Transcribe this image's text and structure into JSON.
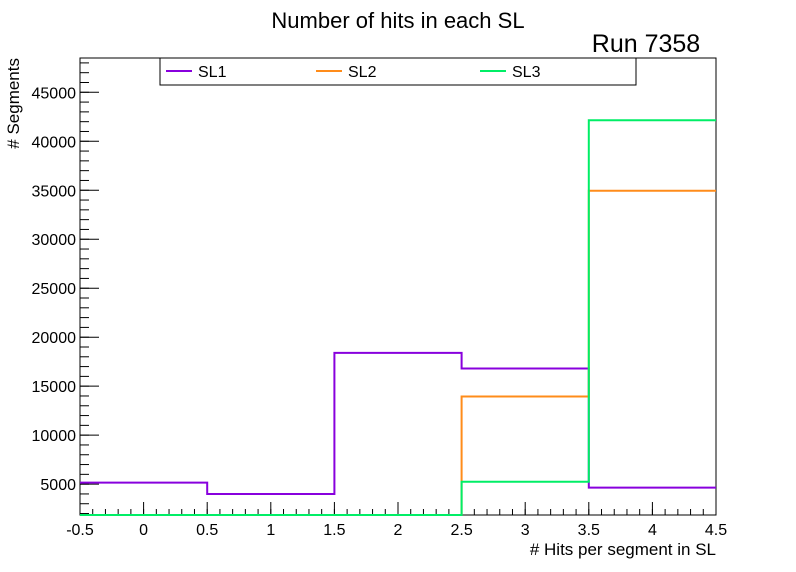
{
  "chart_data": {
    "type": "histogram",
    "title": "Number of hits in each SL",
    "run_label": "Run 7358",
    "xlabel": "# Hits per segment in SL",
    "ylabel": "# Segments",
    "xlim": [
      -0.5,
      4.5
    ],
    "ylim": [
      1850,
      48500
    ],
    "bin_edges": [
      -0.5,
      0.5,
      1.5,
      2.5,
      3.5,
      4.5
    ],
    "x_ticks": [
      "-0.5",
      "0",
      "0.5",
      "1",
      "1.5",
      "2",
      "2.5",
      "3",
      "3.5",
      "4",
      "4.5"
    ],
    "x_tick_values": [
      -0.5,
      0,
      0.5,
      1,
      1.5,
      2,
      2.5,
      3,
      3.5,
      4,
      4.5
    ],
    "y_ticks": [
      "5000",
      "10000",
      "15000",
      "20000",
      "25000",
      "30000",
      "35000",
      "40000",
      "45000"
    ],
    "y_tick_values": [
      5000,
      10000,
      15000,
      20000,
      25000,
      30000,
      35000,
      40000,
      45000
    ],
    "series": [
      {
        "name": "SL1",
        "color": "#8800dd",
        "values": [
          5150,
          4000,
          18400,
          16800,
          4650
        ]
      },
      {
        "name": "SL2",
        "color": "#ff8c1a",
        "values": [
          0,
          0,
          0,
          13950,
          34950
        ]
      },
      {
        "name": "SL3",
        "color": "#00ee66",
        "values": [
          0,
          0,
          0,
          5250,
          42150
        ]
      }
    ]
  }
}
